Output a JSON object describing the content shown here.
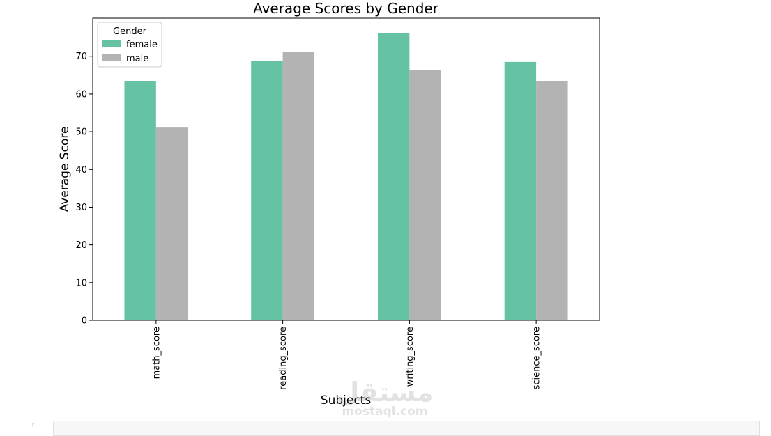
{
  "chart_data": {
    "type": "bar",
    "title": "Average Scores by Gender",
    "xlabel": "Subjects",
    "ylabel": "Average Score",
    "categories": [
      "math_score",
      "reading_score",
      "writing_score",
      "science_score"
    ],
    "series": [
      {
        "name": "female",
        "color": "#66c2a5",
        "values": [
          63.4,
          68.8,
          76.2,
          68.5
        ]
      },
      {
        "name": "male",
        "color": "#b3b3b3",
        "values": [
          51.1,
          71.2,
          66.4,
          63.4
        ]
      }
    ],
    "ylim": [
      0,
      80.1
    ],
    "yticks": [
      0,
      10,
      20,
      30,
      40,
      50,
      60,
      70
    ],
    "legend": {
      "title": "Gender",
      "placement": "top-left"
    },
    "grid": false
  },
  "watermark": {
    "arabic": "مستقل",
    "latin": "mostaql.com"
  },
  "cell_prompt": "[ ]:"
}
